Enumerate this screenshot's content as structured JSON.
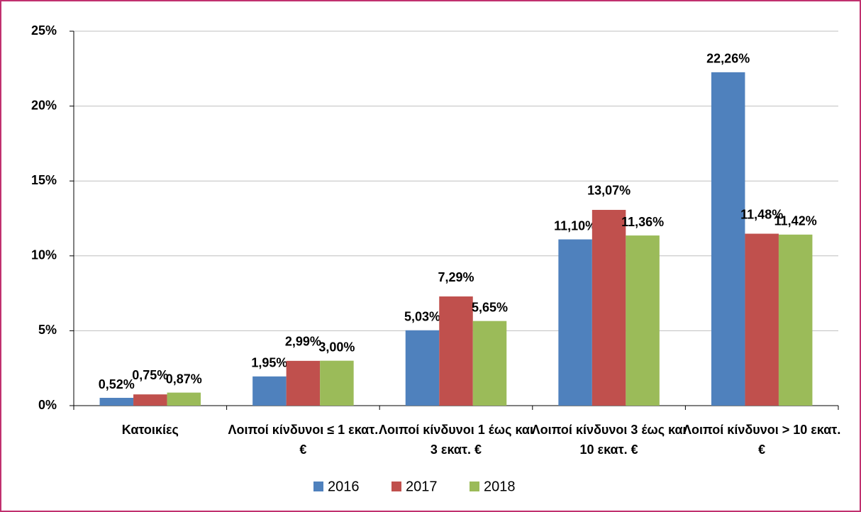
{
  "chart_data": {
    "type": "bar",
    "categories": [
      "Κατοικίες",
      "Λοιποί κίνδυνοι ≤ 1 εκατ. €",
      "Λοιποί κίνδυνοι 1 έως και 3 εκατ. €",
      "Λοιποί κίνδυνοι 3 έως και 10 εκατ. €",
      "Λοιποί κίνδυνοι > 10 εκατ. €"
    ],
    "series": [
      {
        "name": "2016",
        "color": "#4f81bd",
        "values": [
          0.52,
          1.95,
          5.03,
          11.1,
          22.26
        ],
        "value_labels": [
          "0,52%",
          "1,95%",
          "5,03%",
          "11,10%",
          "22,26%"
        ]
      },
      {
        "name": "2017",
        "color": "#c0504d",
        "values": [
          0.75,
          2.99,
          7.29,
          13.07,
          11.48
        ],
        "value_labels": [
          "0,75%",
          "2,99%",
          "7,29%",
          "13,07%",
          "11,48%"
        ]
      },
      {
        "name": "2018",
        "color": "#9bbb59",
        "values": [
          0.87,
          3.0,
          5.65,
          11.36,
          11.42
        ],
        "value_labels": [
          "0,87%",
          "3,00%",
          "5,65%",
          "11,36%",
          "11,42%"
        ]
      }
    ],
    "ylim": [
      0,
      25
    ],
    "yticks": [
      {
        "value": 0,
        "label": "0%"
      },
      {
        "value": 5,
        "label": "5%"
      },
      {
        "value": 10,
        "label": "10%"
      },
      {
        "value": 15,
        "label": "15%"
      },
      {
        "value": 20,
        "label": "20%"
      },
      {
        "value": 25,
        "label": "25%"
      }
    ],
    "grid": true,
    "legend": "bottom"
  }
}
